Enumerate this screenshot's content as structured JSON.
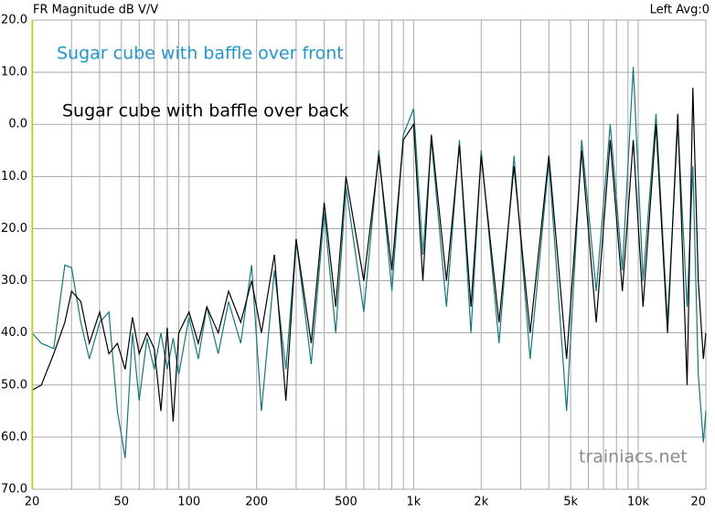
{
  "chart_data": {
    "type": "line",
    "title": "FR Magnitude dB V/V",
    "status": "Left  Avg:0",
    "watermark": "trainiacs.net",
    "log_x": true,
    "grid": true,
    "xlim": [
      20,
      20000
    ],
    "xticks": [
      20,
      50,
      100,
      200,
      500,
      {
        "value": 1000,
        "label": "1k"
      },
      {
        "value": 2000,
        "label": "2k"
      },
      {
        "value": 5000,
        "label": "5k"
      },
      {
        "value": 10000,
        "label": "10k"
      },
      {
        "value": 20000,
        "label": "20"
      }
    ],
    "xminor": [
      30,
      40,
      60,
      70,
      80,
      90,
      300,
      400,
      600,
      700,
      800,
      900,
      3000,
      4000,
      6000,
      7000,
      8000,
      9000
    ],
    "ylim": [
      -70,
      20
    ],
    "yticks": [
      {
        "value": 20,
        "label": "20.0"
      },
      {
        "value": 10,
        "label": "10.0"
      },
      {
        "value": 0,
        "label": "0.0"
      },
      {
        "value": -10,
        "label": "10.0"
      },
      {
        "value": -20,
        "label": "20.0"
      },
      {
        "value": -30,
        "label": "30.0"
      },
      {
        "value": -40,
        "label": "40.0"
      },
      {
        "value": -50,
        "label": "50.0"
      },
      {
        "value": -60,
        "label": "60.0"
      },
      {
        "value": -70,
        "label": "70.0"
      }
    ],
    "x": [
      20,
      22,
      25,
      28,
      30,
      33,
      36,
      40,
      44,
      48,
      52,
      56,
      60,
      65,
      70,
      75,
      80,
      85,
      90,
      100,
      110,
      120,
      135,
      150,
      170,
      190,
      210,
      240,
      270,
      300,
      350,
      400,
      450,
      500,
      600,
      700,
      800,
      900,
      1000,
      1100,
      1200,
      1400,
      1600,
      1800,
      2000,
      2400,
      2800,
      3300,
      4000,
      4800,
      5600,
      6500,
      7500,
      8500,
      9500,
      10500,
      12000,
      13500,
      15000,
      16500,
      17500,
      18500,
      19500,
      20000
    ],
    "series": [
      {
        "name": "Sugar cube with baffle over front",
        "color": "#0f7a7a",
        "label_color": "#1e96d2",
        "values": [
          -40,
          -42,
          -43,
          -27,
          -27.5,
          -38,
          -45,
          -38,
          -36,
          -55,
          -64,
          -40,
          -53,
          -41,
          -47,
          -40,
          -47,
          -41,
          -48,
          -37,
          -45,
          -35,
          -44,
          -34,
          -42,
          -27,
          -55,
          -28,
          -47,
          -22,
          -46,
          -17,
          -40,
          -12,
          -36,
          -5,
          -32,
          -2,
          3,
          -25,
          -3,
          -35,
          -3,
          -40,
          -5,
          -42,
          -6,
          -45,
          -7,
          -55,
          -3,
          -32,
          0,
          -28,
          11,
          -30,
          2,
          -38,
          0,
          -35,
          -8,
          -48,
          -61,
          -55
        ]
      },
      {
        "name": "Sugar cube with baffle over back",
        "color": "#000000",
        "label_color": "#000000",
        "values": [
          -51,
          -50,
          -44,
          -38,
          -32,
          -34,
          -42,
          -36,
          -44,
          -42,
          -47,
          -37,
          -44,
          -40,
          -43,
          -55,
          -39,
          -57,
          -40,
          -36,
          -42,
          -35,
          -40,
          -32,
          -38,
          -30,
          -40,
          -25,
          -53,
          -22,
          -42,
          -15,
          -35,
          -10,
          -30,
          -6,
          -28,
          -3,
          0,
          -30,
          -2,
          -30,
          -4,
          -35,
          -6,
          -38,
          -8,
          -40,
          -6,
          -45,
          -5,
          -38,
          -3,
          -32,
          -3,
          -35,
          0,
          -40,
          2,
          -50,
          7,
          -30,
          -45,
          -40
        ]
      }
    ]
  }
}
